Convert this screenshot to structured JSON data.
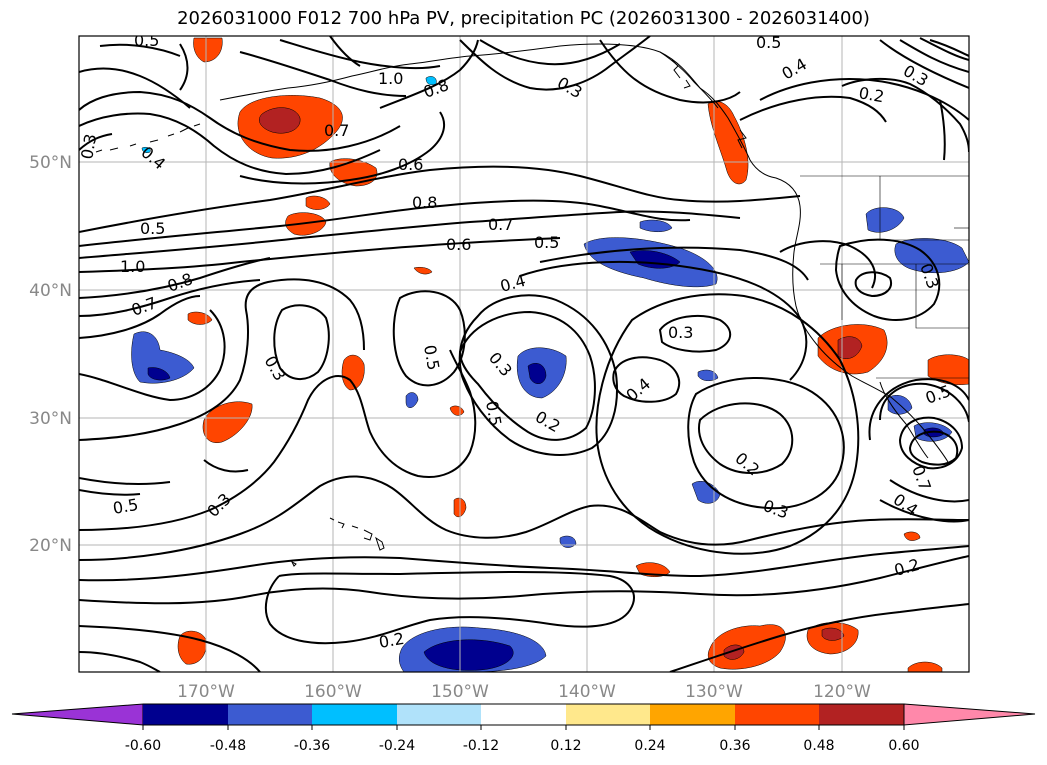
{
  "title": "2026031000 F012 700 hPa PV, precipitation PC (2026031300 - 2026031400)",
  "map": {
    "lon_labels": [
      "170°W",
      "160°W",
      "150°W",
      "140°W",
      "130°W",
      "120°W"
    ],
    "lat_labels": [
      "50°N",
      "40°N",
      "30°N",
      "20°N"
    ],
    "gridlines": true
  },
  "contour_labels": [
    {
      "text": "0.5"
    },
    {
      "text": "0.3"
    },
    {
      "text": "1.0"
    },
    {
      "text": "0.8"
    },
    {
      "text": "0.7"
    },
    {
      "text": "0.6"
    },
    {
      "text": "0.8"
    },
    {
      "text": "0.7"
    },
    {
      "text": "0.6"
    },
    {
      "text": "0.5"
    },
    {
      "text": "0.5"
    },
    {
      "text": "1.0"
    },
    {
      "text": "0.8"
    },
    {
      "text": "0.7"
    },
    {
      "text": "0.4"
    },
    {
      "text": "0.3"
    },
    {
      "text": "0.4"
    },
    {
      "text": "0.3"
    },
    {
      "text": "0.5"
    },
    {
      "text": "0.3"
    },
    {
      "text": "0.2"
    },
    {
      "text": "0.5"
    },
    {
      "text": "0.4"
    },
    {
      "text": "0.3"
    },
    {
      "text": "0.2"
    },
    {
      "text": "0.3"
    },
    {
      "text": "0.5"
    },
    {
      "text": "0.3"
    },
    {
      "text": "0.2"
    },
    {
      "text": "0.2"
    },
    {
      "text": "0.4"
    },
    {
      "text": "0.2"
    },
    {
      "text": "0.3"
    },
    {
      "text": "0.4"
    },
    {
      "text": "0.5"
    },
    {
      "text": "0.7"
    },
    {
      "text": "0.5"
    },
    {
      "text": "0.3"
    }
  ],
  "colorbar": {
    "levels": [
      "-0.60",
      "-0.48",
      "-0.36",
      "-0.24",
      "-0.12",
      "0.12",
      "0.24",
      "0.36",
      "0.48",
      "0.60"
    ],
    "colors": [
      "#9a33d6",
      "#00008f",
      "#3c5bd1",
      "#00bfff",
      "#b0e2fa",
      "#ffffff",
      "#ffe88c",
      "#ffa500",
      "#ff4500",
      "#b22222",
      "#ff88aa"
    ]
  }
}
